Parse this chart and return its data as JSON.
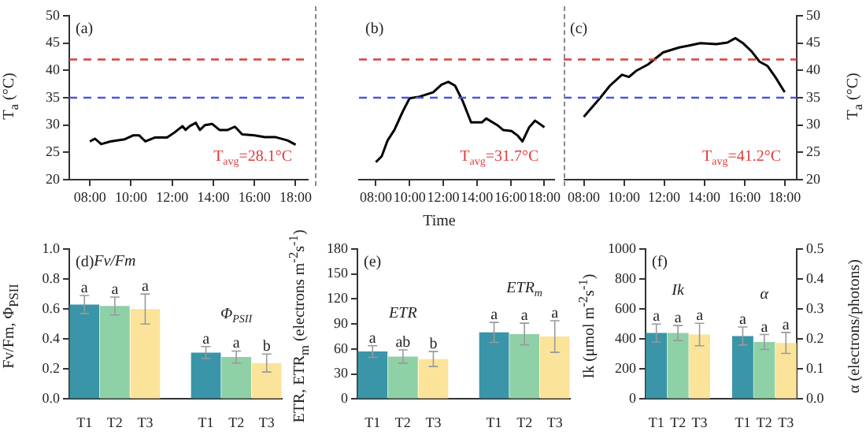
{
  "chart_data": [
    {
      "type": "line",
      "ylabel": "T$_{a}$ (°C)",
      "annotations": [
        "(a)",
        "T$_{avg}$=28.1°C"
      ],
      "xlim": [
        7,
        18.6
      ],
      "xticks": [
        {
          "value": 8,
          "label": "08:00"
        },
        {
          "value": 10,
          "label": "10:00"
        },
        {
          "value": 12,
          "label": "12:00"
        },
        {
          "value": 14,
          "label": "14:00"
        },
        {
          "value": 16,
          "label": "16:00"
        },
        {
          "value": 18,
          "label": "18:00"
        }
      ],
      "ylim": [
        20,
        50
      ],
      "yticks": [
        20,
        25,
        30,
        35,
        40,
        45,
        50
      ],
      "ref_lines": [
        {
          "axis": "y",
          "value": 42,
          "color": "#e03c3c",
          "line_style": "dashed"
        },
        {
          "axis": "y",
          "value": 35,
          "color": "#4a56e0",
          "line_style": "dashed"
        }
      ],
      "series": [
        {
          "color": "#000000",
          "x": [
            8.0,
            8.25,
            8.55,
            9.0,
            9.7,
            10.1,
            10.4,
            10.7,
            11.15,
            11.75,
            12.1,
            12.5,
            12.65,
            12.85,
            13.15,
            13.35,
            13.6,
            13.95,
            14.3,
            14.7,
            15.05,
            15.4,
            16.0,
            16.5,
            17.0,
            17.6,
            18.0
          ],
          "values": [
            27.0,
            27.5,
            26.5,
            27.0,
            27.4,
            28.1,
            28.1,
            27.0,
            27.7,
            27.7,
            28.6,
            29.8,
            29.1,
            29.8,
            30.4,
            29.1,
            30.0,
            30.2,
            29.1,
            29.1,
            29.7,
            28.3,
            28.1,
            27.8,
            27.8,
            27.2,
            26.4
          ]
        }
      ]
    },
    {
      "type": "line",
      "xlabel": "Time",
      "annotations": [
        "(b)",
        "T$_{avg}$=31.7°C"
      ],
      "tick_labels": "x",
      "xlim": [
        7,
        18.6
      ],
      "xticks": [
        {
          "value": 8,
          "label": "08:00"
        },
        {
          "value": 10,
          "label": "10:00"
        },
        {
          "value": 12,
          "label": "12:00"
        },
        {
          "value": 14,
          "label": "14:00"
        },
        {
          "value": 16,
          "label": "16:00"
        },
        {
          "value": 18,
          "label": "18:00"
        }
      ],
      "ylim": [
        20,
        50
      ],
      "yticks": [
        20,
        25,
        30,
        35,
        40,
        45,
        50
      ],
      "ref_lines": [
        {
          "axis": "y",
          "value": 42,
          "color": "#e03c3c",
          "line_style": "dashed"
        },
        {
          "axis": "y",
          "value": 35,
          "color": "#4a56e0",
          "line_style": "dashed"
        }
      ],
      "series": [
        {
          "color": "#000000",
          "x": [
            8.0,
            8.35,
            8.7,
            9.1,
            9.6,
            10.0,
            10.6,
            11.4,
            11.9,
            12.3,
            12.7,
            13.15,
            13.65,
            14.3,
            14.55,
            15.2,
            15.55,
            16.05,
            16.4,
            16.7,
            17.1,
            17.45,
            18.0
          ],
          "values": [
            23.2,
            24.3,
            27.2,
            29.1,
            32.5,
            34.9,
            35.2,
            36.0,
            37.4,
            37.9,
            37.2,
            34.4,
            30.5,
            30.5,
            31.2,
            30.0,
            29.1,
            28.9,
            28.1,
            27.0,
            29.6,
            30.8,
            29.6
          ]
        }
      ]
    },
    {
      "type": "line",
      "y2label": "T$_{a}$ (°C)",
      "annotations": [
        "(c)",
        "T$_{avg}$=41.2°C"
      ],
      "xlim": [
        7,
        18.6
      ],
      "xticks": [
        {
          "value": 8,
          "label": "08:00"
        },
        {
          "value": 10,
          "label": "10:00"
        },
        {
          "value": 12,
          "label": "12:00"
        },
        {
          "value": 14,
          "label": "14:00"
        },
        {
          "value": 16,
          "label": "16:00"
        },
        {
          "value": 18,
          "label": "18:00"
        }
      ],
      "y2lim": [
        20,
        50
      ],
      "y2ticks": [
        20,
        25,
        30,
        35,
        40,
        45,
        50
      ],
      "ref_lines": [
        {
          "axis": "y2",
          "value": 42,
          "color": "#e03c3c",
          "line_style": "dashed"
        },
        {
          "axis": "y2",
          "value": 35,
          "color": "#4a56e0",
          "line_style": "dashed"
        }
      ],
      "series": [
        {
          "color": "#000000",
          "axis": "y2",
          "x": [
            8.0,
            8.8,
            9.3,
            9.9,
            10.25,
            10.6,
            11.2,
            11.95,
            12.75,
            13.3,
            13.8,
            14.6,
            15.15,
            15.55,
            15.95,
            16.35,
            16.75,
            17.15,
            17.55,
            18.0
          ],
          "values": [
            31.5,
            34.9,
            37.2,
            39.2,
            38.8,
            39.9,
            41.1,
            43.3,
            44.2,
            44.6,
            45.0,
            44.8,
            45.1,
            45.9,
            44.9,
            43.5,
            41.6,
            40.8,
            38.7,
            36.0
          ]
        }
      ]
    },
    {
      "type": "bar",
      "ylabel": "Fv/Fm, Φ$_{PSII}$",
      "annotations": [
        "(d)",
        "Fv/Fm",
        "Φ$_{PSII}$"
      ],
      "categories": [
        "T1",
        "T2",
        "T3",
        null,
        "T1",
        "T2",
        "T3"
      ],
      "ylim": [
        0,
        1
      ],
      "yticks": [
        {
          "value": 0,
          "label": "0.0"
        },
        0.2,
        0.4,
        0.6,
        0.8,
        {
          "value": 1,
          "label": "1.0"
        }
      ],
      "series": [
        {
          "colors": [
            "#3a95a8",
            "#8fd1a7",
            "#fbe49a",
            null,
            "#3a95a8",
            "#8fd1a7",
            "#fbe49a"
          ],
          "values": [
            0.63,
            0.62,
            0.6,
            null,
            0.31,
            0.28,
            0.24
          ],
          "errors": [
            0.06,
            0.06,
            0.1,
            null,
            0.04,
            0.04,
            0.06
          ],
          "value_labels": [
            "a",
            "a",
            "a",
            null,
            "a",
            "a",
            "b"
          ]
        }
      ]
    },
    {
      "type": "bar",
      "ylabel": "ETR, ETR$_{m}$ (electrons m$^{-2}$s$^{-1}$)",
      "annotations": [
        "(e)",
        "ETR",
        "ETR$_{m}$"
      ],
      "categories": [
        "T1",
        "T2",
        "T3",
        null,
        "T1",
        "T2",
        "T3"
      ],
      "ylim": [
        0,
        180
      ],
      "yticks": [
        0,
        30,
        60,
        90,
        120,
        150,
        180
      ],
      "series": [
        {
          "colors": [
            "#3a95a8",
            "#8fd1a7",
            "#fbe49a",
            null,
            "#3a95a8",
            "#8fd1a7",
            "#fbe49a"
          ],
          "values": [
            57,
            51,
            48,
            null,
            80,
            78,
            75
          ],
          "errors": [
            7,
            8,
            9,
            null,
            12,
            13,
            19
          ],
          "value_labels": [
            "a",
            "ab",
            "b",
            null,
            "a",
            "a",
            "a"
          ]
        }
      ]
    },
    {
      "type": "bar",
      "ylabel": "Ik (μmol m$^{-2}$s$^{-1}$)",
      "y2label": "α (electrons/photons)",
      "annotations": [
        "(f)",
        "Ik",
        "α"
      ],
      "categories": [
        "T1",
        "T2",
        "T3",
        null,
        "T1",
        "T2",
        "T3"
      ],
      "ylim": [
        0,
        1000
      ],
      "yticks": [
        0,
        200,
        400,
        600,
        800,
        1000
      ],
      "y2lim": [
        0,
        0.5
      ],
      "y2ticks": [
        {
          "value": 0,
          "label": "0.0"
        },
        0.1,
        0.2,
        0.3,
        0.4,
        0.5
      ],
      "series": [
        {
          "colors": [
            "#3a95a8",
            "#8fd1a7",
            "#fbe49a",
            null,
            null,
            null,
            null
          ],
          "values": [
            440,
            440,
            430,
            null,
            null,
            null,
            null
          ],
          "errors": [
            60,
            50,
            75,
            null,
            null,
            null,
            null
          ],
          "value_labels": [
            "a",
            "a",
            "a",
            null,
            null,
            null,
            null
          ]
        },
        {
          "axis": "y2",
          "colors": [
            null,
            null,
            null,
            null,
            "#3a95a8",
            "#8fd1a7",
            "#fbe49a"
          ],
          "values": [
            null,
            null,
            null,
            null,
            0.21,
            0.19,
            0.187
          ],
          "errors": [
            null,
            null,
            null,
            null,
            0.03,
            0.025,
            0.035
          ],
          "value_labels": [
            null,
            null,
            null,
            null,
            "a",
            "a",
            "a"
          ]
        }
      ]
    }
  ]
}
